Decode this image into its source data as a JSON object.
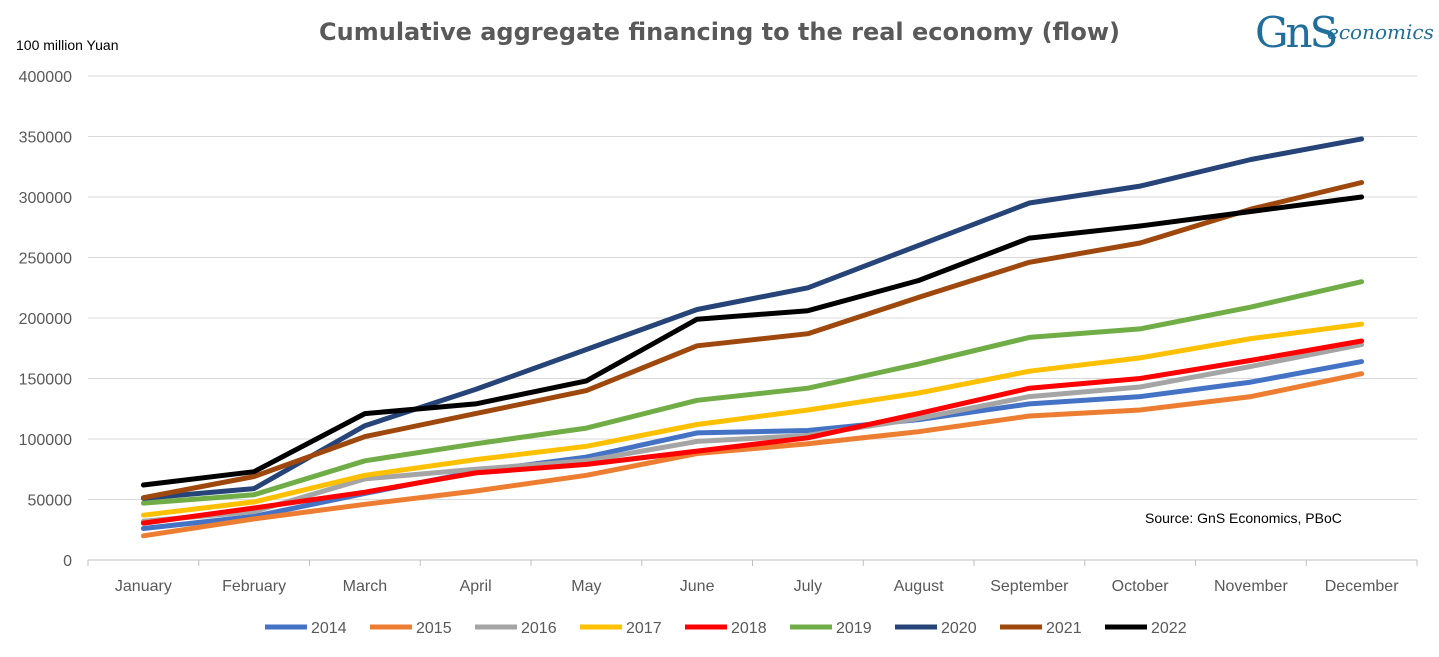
{
  "logo": {
    "brand": "GnS",
    "suffix": "economics",
    "color": "#1f6e9c"
  },
  "chart_data": {
    "type": "line",
    "title": "Cumulative aggregate financing to the real economy (flow)",
    "ylabel": "100 million Yuan",
    "note": "Source: GnS Economics, PBoC",
    "ylim": [
      0,
      400000
    ],
    "yticks": [
      0,
      50000,
      100000,
      150000,
      200000,
      250000,
      300000,
      350000,
      400000
    ],
    "grid": true,
    "legend": "bottom",
    "categories": [
      "January",
      "February",
      "March",
      "April",
      "May",
      "June",
      "July",
      "August",
      "September",
      "October",
      "November",
      "December"
    ],
    "series": [
      {
        "name": "2014",
        "color": "#4472c4",
        "values": [
          26000,
          36000,
          55000,
          73000,
          85000,
          105000,
          107000,
          116000,
          129000,
          135000,
          147000,
          164000
        ]
      },
      {
        "name": "2015",
        "color": "#ed7d31",
        "values": [
          20000,
          34000,
          46000,
          57000,
          70000,
          88000,
          96000,
          106000,
          119000,
          124000,
          135000,
          154000
        ]
      },
      {
        "name": "2016",
        "color": "#a5a5a5",
        "values": [
          32000,
          40000,
          67000,
          75000,
          82000,
          98000,
          103000,
          117000,
          135000,
          143000,
          160000,
          178000
        ]
      },
      {
        "name": "2017",
        "color": "#ffc000",
        "values": [
          37000,
          48000,
          70000,
          83000,
          94000,
          112000,
          124000,
          138000,
          156000,
          167000,
          183000,
          195000
        ]
      },
      {
        "name": "2018",
        "color": "#ff0000",
        "values": [
          30500,
          43000,
          56000,
          72000,
          79000,
          90000,
          101000,
          121000,
          142000,
          150000,
          165000,
          181000
        ]
      },
      {
        "name": "2019",
        "color": "#70ad47",
        "values": [
          47000,
          54000,
          82000,
          96000,
          109000,
          132000,
          142000,
          162000,
          184000,
          191000,
          209000,
          230000
        ]
      },
      {
        "name": "2020",
        "color": "#264478",
        "values": [
          51000,
          59000,
          111000,
          141000,
          174000,
          207000,
          225000,
          260000,
          295000,
          309000,
          331000,
          348000
        ]
      },
      {
        "name": "2021",
        "color": "#9e480e",
        "values": [
          51500,
          69000,
          102000,
          121000,
          140000,
          177000,
          187000,
          217000,
          246000,
          262000,
          290000,
          312000
        ]
      },
      {
        "name": "2022",
        "color": "#000000",
        "values": [
          62000,
          73000,
          121000,
          129000,
          148000,
          199000,
          206000,
          231000,
          266000,
          276000,
          288000,
          300000
        ]
      }
    ]
  }
}
